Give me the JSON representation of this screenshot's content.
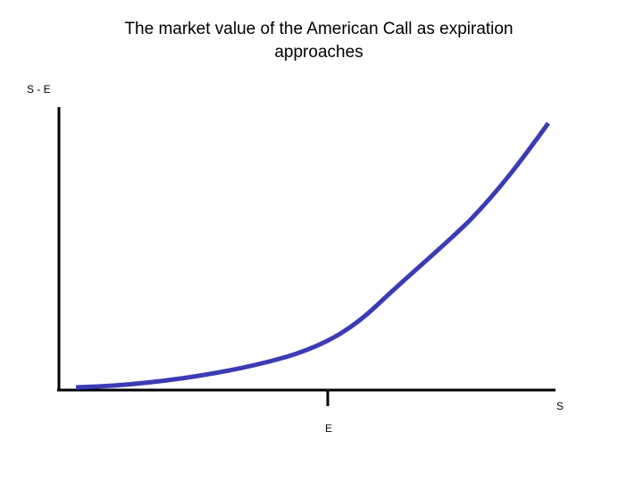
{
  "title": "The market value of the American Call as expiration approaches",
  "y_axis_label": "S - E",
  "x_axis_label": "S",
  "x_marker_label": "E"
}
